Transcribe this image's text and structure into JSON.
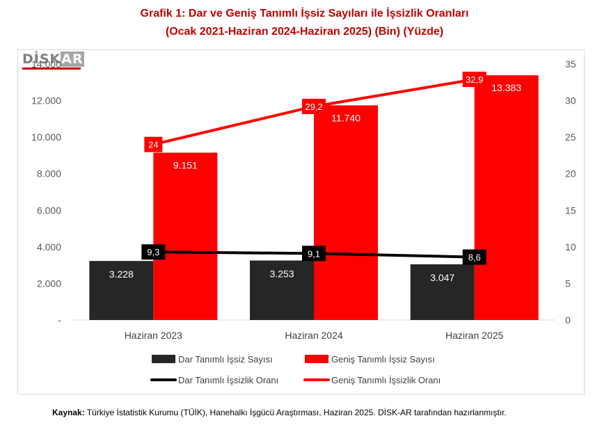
{
  "title_line1": "Grafik 1: Dar ve Geniş Tanımlı İşsiz Sayıları ile İşsizlik Oranları",
  "title_line2": "(Ocak 2021-Haziran 2024-Haziran 2025) (Bin) (Yüzde)",
  "logo": {
    "text_main": "DİSK",
    "text_accent": "AR"
  },
  "source": {
    "label": "Kaynak:",
    "text": " Türkiye İstatistik Kurumu (TÜİK), Hanehalkı İşgücü Araştırması, Haziran 2025. DİSK-AR tarafından hazırlanmıştır."
  },
  "colors": {
    "title": "#c00000",
    "dark": "#262626",
    "red": "#ff0000",
    "black_line": "#000000"
  },
  "chart_data": {
    "type": "bar",
    "categories": [
      "Haziran 2023",
      "Haziran 2024",
      "Haziran 2025"
    ],
    "series": [
      {
        "name": "Dar Tanımlı İşsiz Sayısı",
        "kind": "bar",
        "axis": "left",
        "color": "#262626",
        "values": [
          3228,
          3253,
          3047
        ],
        "labels": [
          "3.228",
          "3.253",
          "3.047"
        ]
      },
      {
        "name": "Geniş Tanımlı İşsiz Sayısı",
        "kind": "bar",
        "axis": "left",
        "color": "#ff0000",
        "values": [
          9151,
          11740,
          13383
        ],
        "labels": [
          "9.151",
          "11.740",
          "13.383"
        ]
      },
      {
        "name": "Dar Tanımlı İşsizlik Oranı",
        "kind": "line",
        "axis": "right",
        "color": "#000000",
        "values": [
          9.3,
          9.1,
          8.6
        ],
        "labels": [
          "9,3",
          "9,1",
          "8,6"
        ]
      },
      {
        "name": "Geniş Tanımlı İşsizlik Oranı",
        "kind": "line",
        "axis": "right",
        "color": "#ff0000",
        "values": [
          24,
          29.2,
          32.9
        ],
        "labels": [
          "24",
          "29,2",
          "32,9"
        ]
      }
    ],
    "left_axis": {
      "min": 0,
      "max": 14000,
      "ticks": [
        0,
        2000,
        4000,
        6000,
        8000,
        10000,
        12000,
        14000
      ],
      "tick_labels": [
        "-",
        "2.000",
        "4.000",
        "6.000",
        "8.000",
        "10.000",
        "12.000",
        "14.000"
      ]
    },
    "right_axis": {
      "min": 0,
      "max": 35,
      "ticks": [
        0,
        5,
        10,
        15,
        20,
        25,
        30,
        35
      ],
      "tick_labels": [
        "0",
        "5",
        "10",
        "15",
        "20",
        "25",
        "30",
        "35"
      ]
    },
    "grid": false,
    "legend_position": "bottom"
  }
}
